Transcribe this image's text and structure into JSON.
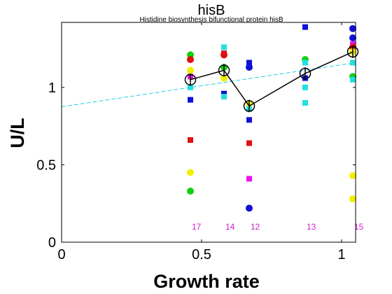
{
  "chart_data": {
    "type": "scatter",
    "title": "hisB",
    "subtitle": "Histidine biosynthesis bifunctional protein hisB",
    "xlabel": "Growth rate",
    "ylabel": "U/L",
    "xlim": [
      0,
      1.05
    ],
    "ylim": [
      0,
      1.42
    ],
    "xticks": [
      0,
      0.5,
      1
    ],
    "yticks": [
      0,
      0.5,
      1
    ],
    "xtick_labels": [
      "0",
      "0.5",
      "1"
    ],
    "ytick_labels": [
      "0",
      "0.5",
      "1"
    ],
    "grid": false,
    "colors": {
      "blue": "#1010d8",
      "red": "#e01010",
      "green": "#10d010",
      "yellow": "#f0f000",
      "magenta": "#f010f0",
      "cyan": "#20e0e0",
      "mean_line": "#000000",
      "fit_line": "#20d0e8",
      "count_text": "#d020d0"
    },
    "fit_line": {
      "x": [
        0,
        1.05
      ],
      "y": [
        0.875,
        1.16
      ]
    },
    "mean_series": {
      "x": [
        0.46,
        0.58,
        0.67,
        0.87,
        1.04
      ],
      "y": [
        1.05,
        1.11,
        0.88,
        1.09,
        1.23
      ],
      "err": [
        0.04,
        0.04,
        0.04,
        0.04,
        0.04
      ]
    },
    "counts": [
      {
        "x": 0.46,
        "label": "17"
      },
      {
        "x": 0.58,
        "label": "14"
      },
      {
        "x": 0.67,
        "label": "12"
      },
      {
        "x": 0.87,
        "label": "13"
      },
      {
        "x": 1.04,
        "label": "15"
      }
    ],
    "counts_y": 0.1,
    "points": [
      {
        "x": 0.46,
        "y": 1.21,
        "shape": "circle",
        "color": "green"
      },
      {
        "x": 0.46,
        "y": 1.18,
        "shape": "circle",
        "color": "red"
      },
      {
        "x": 0.46,
        "y": 1.11,
        "shape": "circle",
        "color": "yellow"
      },
      {
        "x": 0.46,
        "y": 1.07,
        "shape": "square",
        "color": "magenta"
      },
      {
        "x": 0.46,
        "y": 1.0,
        "shape": "square",
        "color": "cyan"
      },
      {
        "x": 0.46,
        "y": 0.92,
        "shape": "square",
        "color": "blue"
      },
      {
        "x": 0.46,
        "y": 0.66,
        "shape": "square",
        "color": "red"
      },
      {
        "x": 0.46,
        "y": 0.45,
        "shape": "circle",
        "color": "yellow"
      },
      {
        "x": 0.46,
        "y": 0.33,
        "shape": "circle",
        "color": "green"
      },
      {
        "x": 0.58,
        "y": 1.26,
        "shape": "square",
        "color": "cyan"
      },
      {
        "x": 0.58,
        "y": 1.22,
        "shape": "square",
        "color": "red"
      },
      {
        "x": 0.58,
        "y": 1.21,
        "shape": "circle",
        "color": "red"
      },
      {
        "x": 0.58,
        "y": 1.13,
        "shape": "circle",
        "color": "green"
      },
      {
        "x": 0.58,
        "y": 1.06,
        "shape": "circle",
        "color": "yellow"
      },
      {
        "x": 0.58,
        "y": 0.96,
        "shape": "square",
        "color": "blue"
      },
      {
        "x": 0.58,
        "y": 0.94,
        "shape": "square",
        "color": "cyan"
      },
      {
        "x": 0.67,
        "y": 1.16,
        "shape": "square",
        "color": "blue"
      },
      {
        "x": 0.67,
        "y": 1.13,
        "shape": "circle",
        "color": "blue"
      },
      {
        "x": 0.67,
        "y": 0.89,
        "shape": "circle",
        "color": "yellow"
      },
      {
        "x": 0.67,
        "y": 0.86,
        "shape": "square",
        "color": "cyan"
      },
      {
        "x": 0.67,
        "y": 0.79,
        "shape": "square",
        "color": "blue"
      },
      {
        "x": 0.67,
        "y": 0.64,
        "shape": "square",
        "color": "red"
      },
      {
        "x": 0.67,
        "y": 0.41,
        "shape": "square",
        "color": "magenta"
      },
      {
        "x": 0.67,
        "y": 0.22,
        "shape": "circle",
        "color": "blue"
      },
      {
        "x": 0.87,
        "y": 1.39,
        "shape": "square",
        "color": "blue"
      },
      {
        "x": 0.87,
        "y": 1.18,
        "shape": "circle",
        "color": "green"
      },
      {
        "x": 0.87,
        "y": 1.16,
        "shape": "square",
        "color": "cyan"
      },
      {
        "x": 0.87,
        "y": 1.06,
        "shape": "square",
        "color": "blue"
      },
      {
        "x": 0.87,
        "y": 1.0,
        "shape": "square",
        "color": "cyan"
      },
      {
        "x": 0.87,
        "y": 0.9,
        "shape": "square",
        "color": "cyan"
      },
      {
        "x": 1.04,
        "y": 1.38,
        "shape": "circle",
        "color": "blue"
      },
      {
        "x": 1.04,
        "y": 1.32,
        "shape": "circle",
        "color": "blue"
      },
      {
        "x": 1.04,
        "y": 1.28,
        "shape": "square",
        "color": "magenta"
      },
      {
        "x": 1.04,
        "y": 1.26,
        "shape": "circle",
        "color": "red"
      },
      {
        "x": 1.04,
        "y": 1.23,
        "shape": "circle",
        "color": "yellow"
      },
      {
        "x": 1.04,
        "y": 1.16,
        "shape": "square",
        "color": "cyan"
      },
      {
        "x": 1.04,
        "y": 1.07,
        "shape": "circle",
        "color": "green"
      },
      {
        "x": 1.04,
        "y": 1.05,
        "shape": "square",
        "color": "cyan"
      },
      {
        "x": 1.04,
        "y": 0.43,
        "shape": "circle",
        "color": "yellow"
      },
      {
        "x": 1.04,
        "y": 0.28,
        "shape": "circle",
        "color": "yellow"
      }
    ]
  }
}
